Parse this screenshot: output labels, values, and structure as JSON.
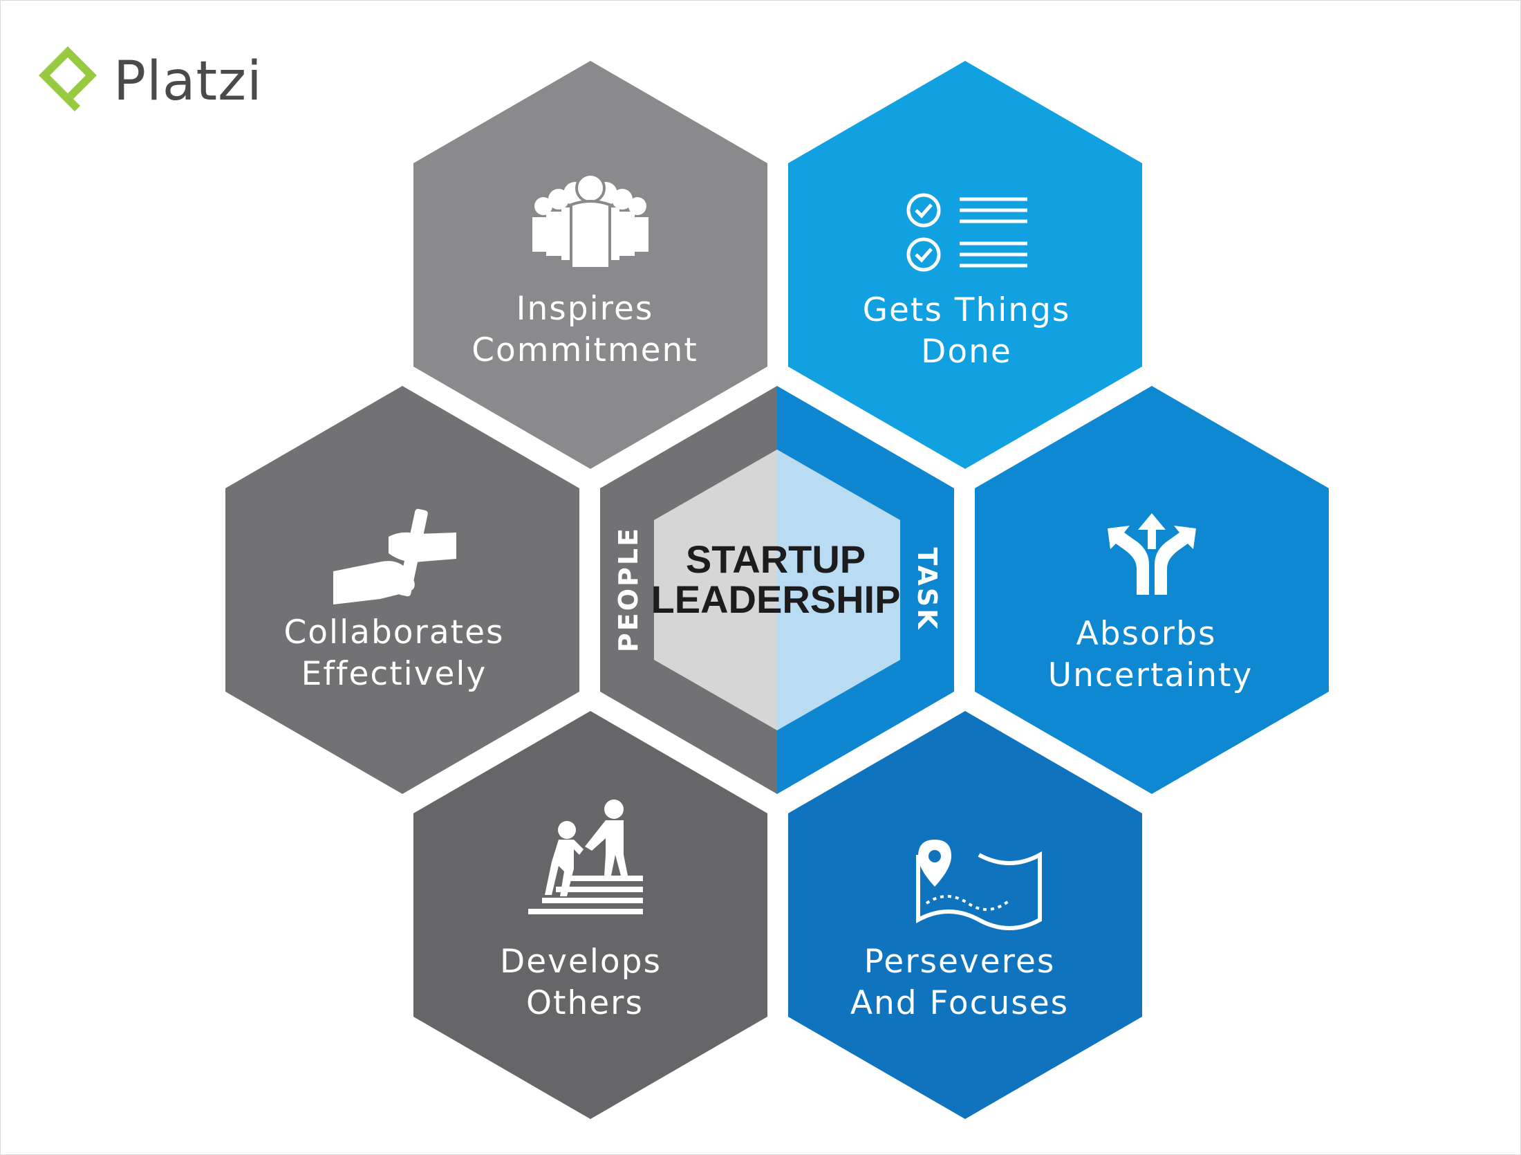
{
  "brand": {
    "name": "Platzi",
    "logo_color": "#98ca3f",
    "logo_icon": "platzi-logo-icon"
  },
  "colors": {
    "gray_light": "#8a8a8c",
    "gray_mid": "#727274",
    "gray_dark": "#666668",
    "blue_light": "#12a1e0",
    "blue_mid": "#0d88d1",
    "blue_dark": "#0f74bd",
    "center_gray": "#d6d6d7",
    "center_blue": "#b9dcf3"
  },
  "center": {
    "line1": "STARTUP",
    "line2": "LEADERSHIP",
    "left_label": "PEOPLE",
    "right_label": "TASK"
  },
  "hexagons": [
    {
      "id": "inspires",
      "line1": "Inspires",
      "line2": "Commitment",
      "icon": "group-people-icon",
      "side": "people"
    },
    {
      "id": "gets",
      "line1": "Gets Things",
      "line2": "Done",
      "icon": "checklist-icon",
      "side": "task"
    },
    {
      "id": "collab",
      "line1": "Collaborates",
      "line2": "Effectively",
      "icon": "baton-handoff-icon",
      "side": "people"
    },
    {
      "id": "absorbs",
      "line1": "Absorbs",
      "line2": "Uncertainty",
      "icon": "split-arrows-icon",
      "side": "task"
    },
    {
      "id": "develops",
      "line1": "Develops",
      "line2": "Others",
      "icon": "helping-climb-icon",
      "side": "people"
    },
    {
      "id": "perseveres",
      "line1": "Perseveres",
      "line2": "And Focuses",
      "icon": "map-pin-icon",
      "side": "task"
    }
  ]
}
